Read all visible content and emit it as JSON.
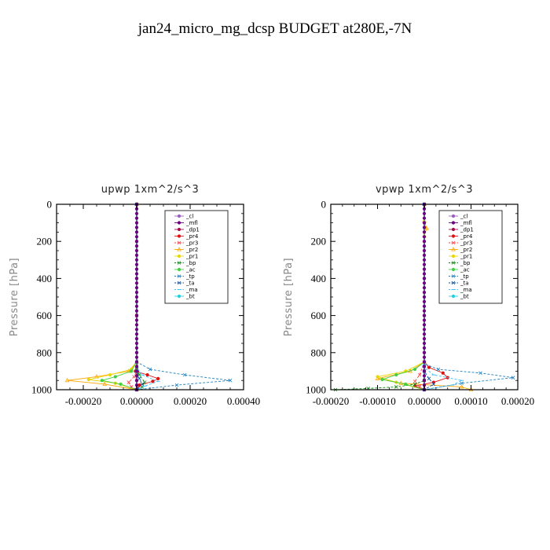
{
  "title": "jan24_micro_mg_dcsp  BUDGET at280E,-7N",
  "chart_data": [
    {
      "type": "line",
      "title": "upwp   1xm^2/s^3",
      "ylabel": "Pressure [hPa]",
      "xlabel": "",
      "xlim": [
        -0.0003,
        0.0004
      ],
      "ylim": [
        1000,
        0
      ],
      "xticks": [
        -0.0002,
        0.0,
        0.0002,
        0.0004
      ],
      "xtick_labels": [
        "-0.00020",
        "0.00000",
        "0.00020",
        "0.00040"
      ],
      "yticks": [
        0,
        200,
        400,
        600,
        800,
        1000
      ],
      "ytick_labels": [
        "0",
        "200",
        "400",
        "600",
        "800",
        "1000"
      ],
      "legend_position": "top-right",
      "grid": false,
      "series": [
        {
          "name": "_cl",
          "color": "#9a5fc0",
          "marker": "circle",
          "x": [
            0,
            0,
            0,
            0,
            0,
            0
          ],
          "y": [
            0,
            200,
            400,
            600,
            800,
            1000
          ]
        },
        {
          "name": "_mfl",
          "color": "#6a0080",
          "marker": "circle",
          "x": [
            0,
            0,
            0,
            0,
            0,
            0,
            0,
            0
          ],
          "y": [
            0,
            200,
            400,
            600,
            800,
            900,
            950,
            1000
          ]
        },
        {
          "name": "_dp1",
          "color": "#a0104a",
          "marker": "circle",
          "x": [
            0,
            0,
            0,
            0,
            0,
            3e-06,
            0,
            0
          ],
          "y": [
            0,
            200,
            400,
            600,
            800,
            900,
            950,
            1000
          ]
        },
        {
          "name": "_pr4",
          "color": "#e01010",
          "marker": "circle",
          "x": [
            0,
            0,
            0,
            -5e-06,
            4e-05,
            8e-05,
            6e-05,
            1e-05,
            0
          ],
          "y": [
            0,
            600,
            880,
            900,
            920,
            940,
            955,
            975,
            1000
          ]
        },
        {
          "name": "_pr3",
          "color": "#ff4040",
          "marker": "cross",
          "x": [
            0,
            0,
            0,
            -1e-05,
            -3e-05,
            -2e-05,
            0
          ],
          "y": [
            0,
            600,
            900,
            930,
            960,
            985,
            1000
          ]
        },
        {
          "name": "_pr2",
          "color": "#ffa500",
          "marker": "triangle",
          "x": [
            0,
            0,
            -3e-05,
            -0.00015,
            -0.00026,
            -0.00012,
            0
          ],
          "y": [
            0,
            850,
            900,
            930,
            950,
            970,
            1000
          ]
        },
        {
          "name": "_pr1",
          "color": "#e8d800",
          "marker": "circle",
          "x": [
            0,
            0,
            -2e-05,
            -0.0001,
            -0.00018,
            -8e-05,
            0
          ],
          "y": [
            0,
            850,
            890,
            920,
            945,
            965,
            1000
          ]
        },
        {
          "name": "_bp",
          "color": "#0a8a0a",
          "marker": "cross",
          "x": [
            0,
            0,
            1e-05,
            3e-05,
            2e-05,
            0
          ],
          "y": [
            0,
            880,
            920,
            960,
            985,
            1000
          ]
        },
        {
          "name": "_ac",
          "color": "#40d040",
          "marker": "circle",
          "x": [
            0,
            0,
            -2e-05,
            -8e-05,
            -0.00013,
            -6e-05,
            0
          ],
          "y": [
            0,
            850,
            900,
            930,
            950,
            970,
            1000
          ]
        },
        {
          "name": "_tp",
          "color": "#2080c0",
          "marker": "cross",
          "x": [
            0,
            0,
            5e-05,
            0.00018,
            0.00035,
            0.00015,
            0
          ],
          "y": [
            0,
            850,
            890,
            920,
            950,
            975,
            1000
          ]
        },
        {
          "name": "_ta",
          "color": "#1050a0",
          "marker": "cross",
          "x": [
            0,
            0,
            1e-05,
            2e-05,
            0
          ],
          "y": [
            0,
            900,
            940,
            970,
            1000
          ]
        },
        {
          "name": "_ma",
          "color": "#40c0ff",
          "marker": "dash",
          "x": [
            0,
            0,
            2e-05,
            8e-05,
            3e-05,
            0
          ],
          "y": [
            0,
            880,
            920,
            955,
            980,
            1000
          ]
        },
        {
          "name": "_bt",
          "color": "#20d0e0",
          "marker": "circle",
          "x": [
            0,
            0,
            0
          ],
          "y": [
            0,
            900,
            1000
          ]
        }
      ]
    },
    {
      "type": "line",
      "title": "vpwp   1xm^2/s^3",
      "ylabel": "Pressure [hPa]",
      "xlabel": "",
      "xlim": [
        -0.0002,
        0.0002
      ],
      "ylim": [
        1000,
        0
      ],
      "xticks": [
        -0.0002,
        -0.0001,
        0.0,
        0.0001,
        0.0002
      ],
      "xtick_labels": [
        "-0.00020",
        "-0.00010",
        "0.00000",
        "0.00010",
        "0.00020"
      ],
      "yticks": [
        0,
        200,
        400,
        600,
        800,
        1000
      ],
      "ytick_labels": [
        "0",
        "200",
        "400",
        "600",
        "800",
        "1000"
      ],
      "legend_position": "top-right",
      "grid": false,
      "series": [
        {
          "name": "_cl",
          "color": "#9a5fc0",
          "marker": "circle",
          "x": [
            0,
            0,
            0,
            0,
            0,
            0
          ],
          "y": [
            0,
            200,
            400,
            600,
            800,
            1000
          ]
        },
        {
          "name": "_mfl",
          "color": "#6a0080",
          "marker": "circle",
          "x": [
            0,
            0,
            0,
            0,
            0,
            0,
            0,
            0
          ],
          "y": [
            0,
            200,
            400,
            600,
            800,
            900,
            950,
            1000
          ]
        },
        {
          "name": "_dp1",
          "color": "#a0104a",
          "marker": "circle",
          "x": [
            0,
            0,
            0,
            0,
            0,
            0,
            0
          ],
          "y": [
            0,
            200,
            400,
            600,
            800,
            900,
            1000
          ]
        },
        {
          "name": "_pr4",
          "color": "#e01010",
          "marker": "circle",
          "x": [
            0,
            0,
            1e-05,
            4e-05,
            5e-05,
            2e-05,
            -2e-05,
            0
          ],
          "y": [
            0,
            850,
            880,
            910,
            935,
            960,
            980,
            1000
          ]
        },
        {
          "name": "_pr3",
          "color": "#ff4040",
          "marker": "cross",
          "x": [
            0,
            0,
            -1e-05,
            -2e-05,
            -1e-05,
            0
          ],
          "y": [
            0,
            850,
            920,
            955,
            985,
            1000
          ]
        },
        {
          "name": "_pr2",
          "color": "#ffa500",
          "marker": "triangle",
          "x": [
            0,
            0,
            5e-06,
            0,
            0,
            -3e-05,
            -0.0001,
            -5e-05,
            8e-05,
            0.0001
          ],
          "y": [
            0,
            90,
            130,
            170,
            850,
            900,
            940,
            965,
            985,
            1000
          ]
        },
        {
          "name": "_pr1",
          "color": "#e8d800",
          "marker": "circle",
          "x": [
            0,
            0,
            -4e-05,
            -0.0001,
            -6e-05,
            0
          ],
          "y": [
            0,
            850,
            900,
            930,
            960,
            1000
          ]
        },
        {
          "name": "_bp",
          "color": "#0a8a0a",
          "marker": "cross",
          "x": [
            0,
            0,
            -2e-05,
            -6e-05,
            -0.00012,
            -0.00019
          ],
          "y": [
            0,
            950,
            970,
            985,
            993,
            1000
          ]
        },
        {
          "name": "_ac",
          "color": "#40d040",
          "marker": "circle",
          "x": [
            0,
            0,
            -2e-05,
            -6e-05,
            -9e-05,
            -4e-05,
            0
          ],
          "y": [
            0,
            850,
            890,
            920,
            945,
            970,
            1000
          ]
        },
        {
          "name": "_tp",
          "color": "#2080c0",
          "marker": "cross",
          "x": [
            0,
            0,
            3e-05,
            0.00012,
            0.00019,
            8e-05,
            0
          ],
          "y": [
            0,
            860,
            890,
            910,
            935,
            965,
            1000
          ]
        },
        {
          "name": "_ta",
          "color": "#1050a0",
          "marker": "cross",
          "x": [
            0,
            0,
            1e-05,
            2e-05,
            0
          ],
          "y": [
            0,
            900,
            940,
            970,
            1000
          ]
        },
        {
          "name": "_ma",
          "color": "#40c0ff",
          "marker": "dash",
          "x": [
            0,
            0,
            2e-05,
            8e-05,
            6e-05,
            0
          ],
          "y": [
            0,
            880,
            920,
            950,
            975,
            1000
          ]
        },
        {
          "name": "_bt",
          "color": "#20d0e0",
          "marker": "circle",
          "x": [
            0,
            0,
            0
          ],
          "y": [
            0,
            900,
            1000
          ]
        }
      ]
    }
  ]
}
